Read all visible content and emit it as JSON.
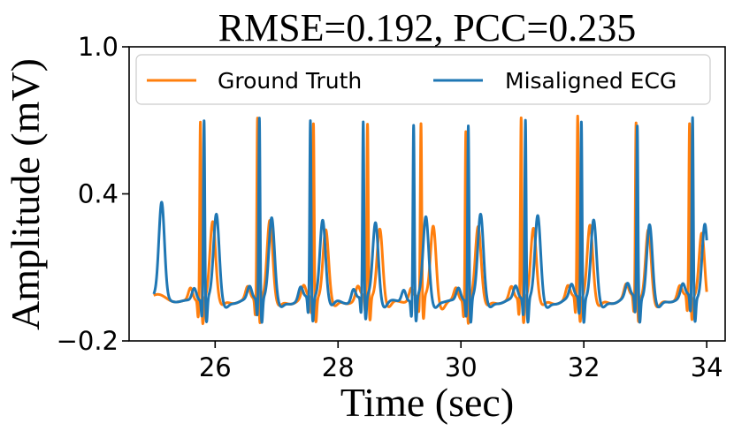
{
  "chart_data": {
    "type": "line",
    "title": "RMSE=0.192, PCC=0.235",
    "xlabel": "Time (sec)",
    "ylabel": "Amplitude (mV)",
    "xlim": [
      24.6,
      34.3
    ],
    "ylim": [
      -0.2,
      1.0
    ],
    "xticks": [
      26,
      28,
      30,
      32,
      34
    ],
    "xtick_labels": [
      "26",
      "28",
      "30",
      "32",
      "34"
    ],
    "yticks": [
      -0.2,
      0.4,
      1.0
    ],
    "ytick_labels": [
      "−0.2",
      "0.4",
      "1.0"
    ],
    "grid": false,
    "legend": {
      "placement": "top",
      "columns": 2
    },
    "series": [
      {
        "name": "Ground Truth",
        "color": "#ff7f0e",
        "baseline": -0.03,
        "x_start": 25.0,
        "x_end": 34.0,
        "beats": [
          {
            "t": 25.76,
            "peak": 0.7,
            "t_peak": 0.3
          },
          {
            "t": 26.69,
            "peak": 0.71,
            "t_peak": 0.31
          },
          {
            "t": 27.6,
            "peak": 0.68,
            "t_peak": 0.28
          },
          {
            "t": 28.48,
            "peak": 0.67,
            "t_peak": 0.29
          },
          {
            "t": 29.35,
            "peak": 0.67,
            "t_peak": 0.3
          },
          {
            "t": 30.08,
            "peak": 0.66,
            "t_peak": 0.28
          },
          {
            "t": 30.98,
            "peak": 0.71,
            "t_peak": 0.28
          },
          {
            "t": 31.9,
            "peak": 0.71,
            "t_peak": 0.3
          },
          {
            "t": 32.85,
            "peak": 0.68,
            "t_peak": 0.29
          },
          {
            "t": 33.72,
            "peak": 0.67,
            "t_peak": 0.28
          }
        ]
      },
      {
        "name": "Misaligned ECG",
        "color": "#1f77b4",
        "baseline": -0.03,
        "x_start": 25.0,
        "x_end": 34.0,
        "beats": [
          {
            "t": 25.82,
            "peak": 0.7,
            "t_peak": 0.33
          },
          {
            "t": 26.72,
            "peak": 0.71,
            "t_peak": 0.32
          },
          {
            "t": 27.55,
            "peak": 0.69,
            "t_peak": 0.32
          },
          {
            "t": 28.41,
            "peak": 0.68,
            "t_peak": 0.31
          },
          {
            "t": 29.23,
            "peak": 0.68,
            "t_peak": 0.32
          },
          {
            "t": 30.12,
            "peak": 0.68,
            "t_peak": 0.33
          },
          {
            "t": 31.05,
            "peak": 0.7,
            "t_peak": 0.33
          },
          {
            "t": 31.96,
            "peak": 0.69,
            "t_peak": 0.32
          },
          {
            "t": 32.87,
            "peak": 0.67,
            "t_peak": 0.31
          },
          {
            "t": 33.77,
            "peak": 0.7,
            "t_peak": 0.32
          }
        ],
        "leading_t_wave": {
          "t": 25.13,
          "peak": 0.35
        }
      }
    ]
  }
}
